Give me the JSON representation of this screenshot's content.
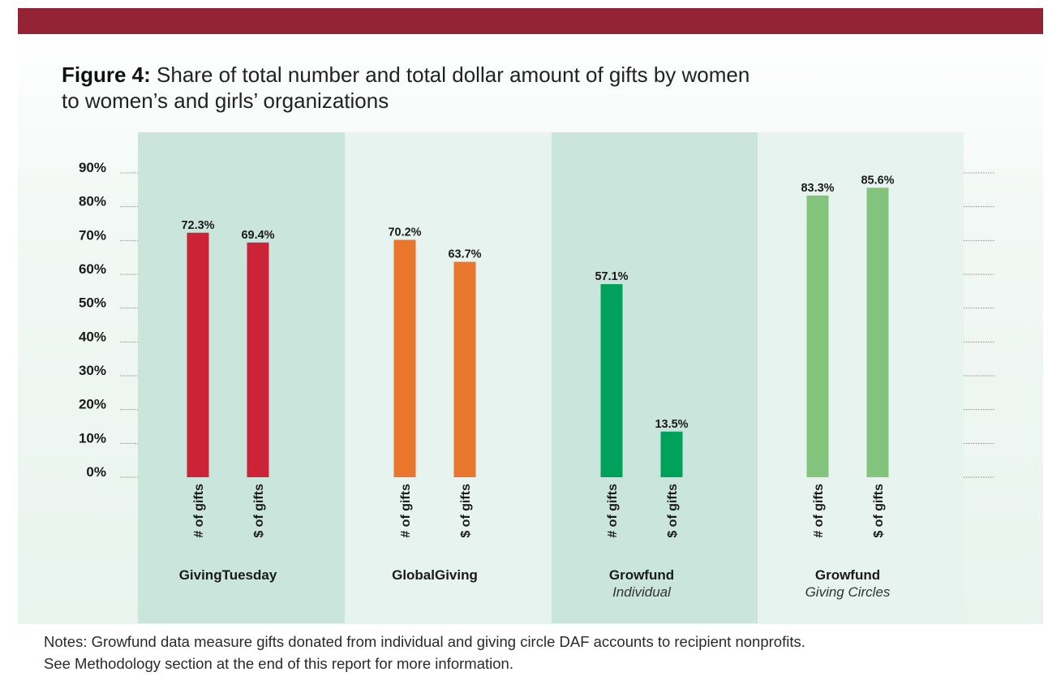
{
  "figure": {
    "label": "Figure 4:",
    "title": "Share of total number and total dollar amount of gifts by women to women’s and girls’ organizations",
    "title_line1": "Share of total number and total dollar amount of gifts by women",
    "title_line2": "to women’s and girls’ organizations"
  },
  "notes": {
    "line1": "Notes: Growfund data measure gifts donated from individual and giving circle DAF accounts to recipient nonprofits.",
    "line2": "See Methodology section at the end of this report for more information."
  },
  "colors": {
    "header_band": "#942335",
    "group_shade": "#cae5dc",
    "group_light": "#e6f3ee"
  },
  "chart_data": {
    "type": "bar",
    "title": "Share of total number and total dollar amount of gifts by women to women’s and girls’ organizations",
    "xlabel": "",
    "ylabel": "",
    "ylim": [
      0,
      90
    ],
    "yticks": [
      "0%",
      "10%",
      "20%",
      "30%",
      "40%",
      "50%",
      "60%",
      "70%",
      "80%",
      "90%"
    ],
    "bar_labels": [
      "# of gifts",
      "$ of gifts"
    ],
    "groups": [
      {
        "name": "GivingTuesday",
        "subtitle": "",
        "color": "#cc2336",
        "values": [
          72.3,
          69.4
        ],
        "value_labels": [
          "72.3%",
          "69.4%"
        ]
      },
      {
        "name": "GlobalGiving",
        "subtitle": "",
        "color": "#e8762c",
        "values": [
          70.2,
          63.7
        ],
        "value_labels": [
          "70.2%",
          "63.7%"
        ]
      },
      {
        "name": "Growfund",
        "subtitle": "Individual",
        "color": "#00a15b",
        "values": [
          57.1,
          13.5
        ],
        "value_labels": [
          "57.1%",
          "13.5%"
        ]
      },
      {
        "name": "Growfund",
        "subtitle": "Giving Circles",
        "color": "#83c47d",
        "values": [
          83.3,
          85.6
        ],
        "value_labels": [
          "83.3%",
          "85.6%"
        ]
      }
    ]
  }
}
